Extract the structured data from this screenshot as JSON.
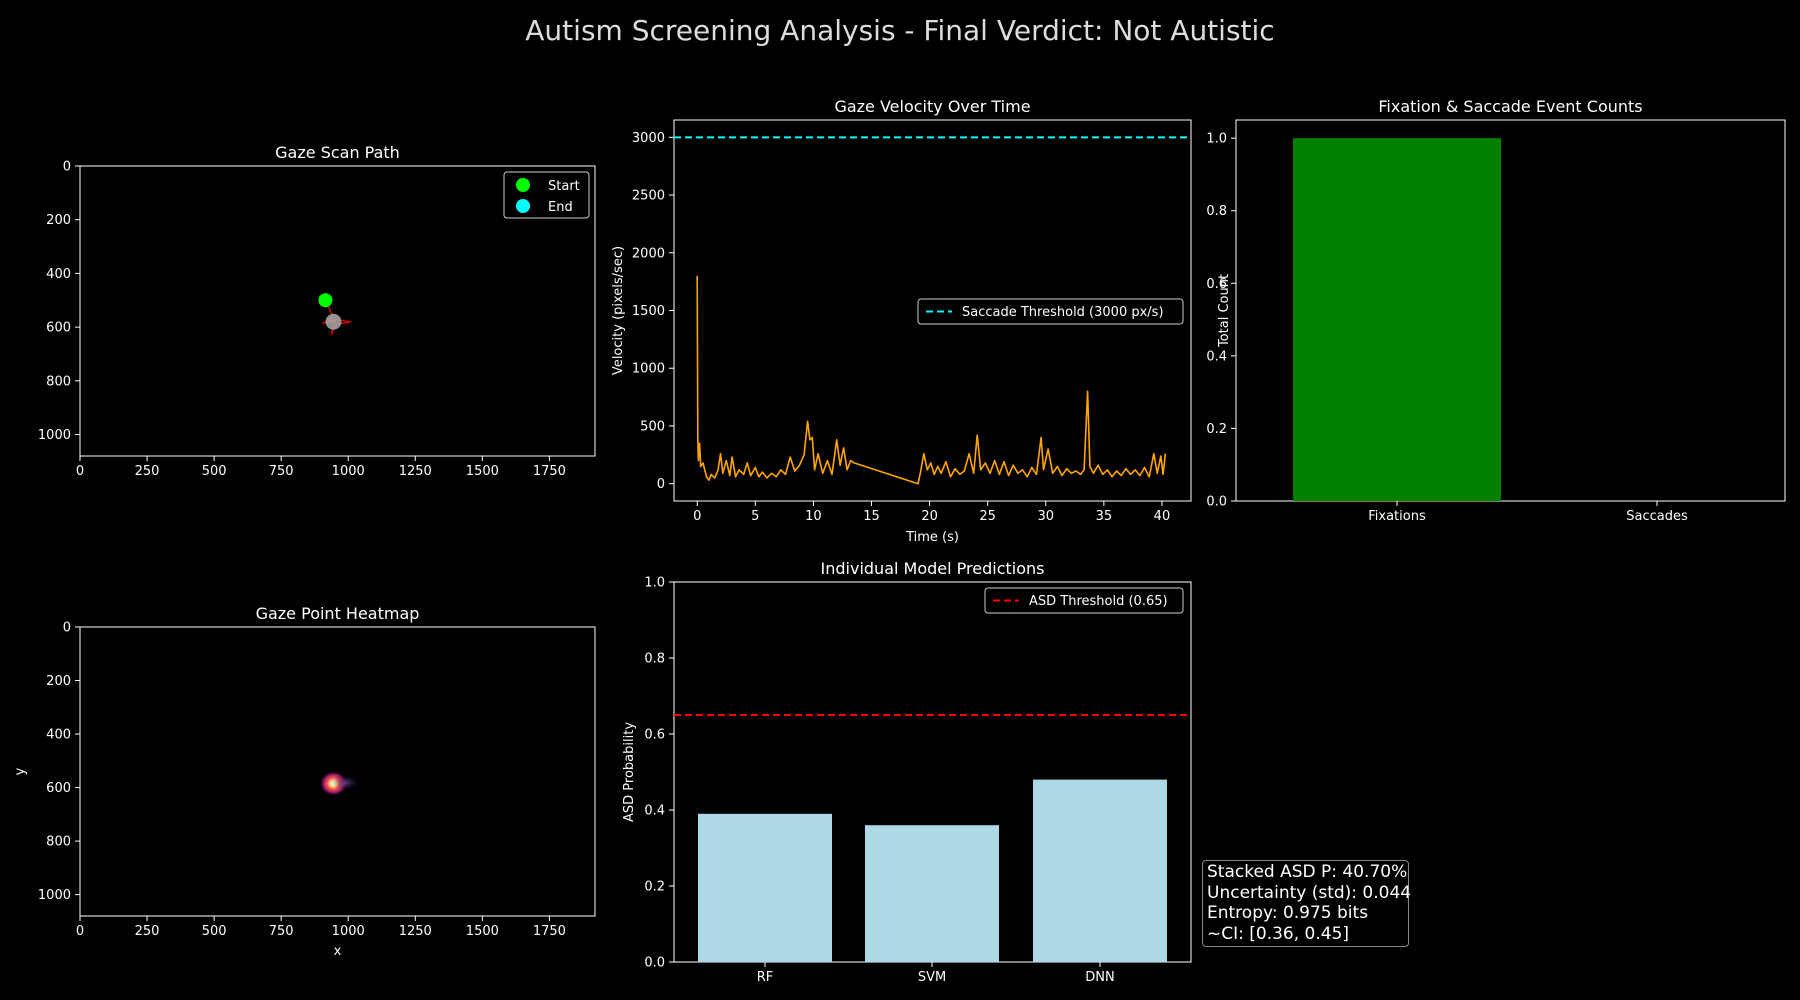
{
  "page": {
    "title": "Autism Screening Analysis - Final Verdict: Not Autistic"
  },
  "colors": {
    "background": "#000000",
    "axis": "#ffffff",
    "start_marker": "#00ff00",
    "end_marker": "#00ffff",
    "scan_path": "#cc0000",
    "velocity_line": "#ffa500",
    "saccade_threshold": "#00ffff",
    "fixation_bar": "#008000",
    "model_bar": "#add8e6",
    "asd_threshold": "#ff0000"
  },
  "chart_data": [
    {
      "id": "scan_path",
      "type": "scatter",
      "title": "Gaze Scan Path",
      "xlabel": "",
      "ylabel": "",
      "xlim": [
        0,
        1920
      ],
      "ylim": [
        1080,
        0
      ],
      "xticks": [
        0,
        250,
        500,
        750,
        1000,
        1250,
        1500,
        1750
      ],
      "yticks": [
        0,
        200,
        400,
        600,
        800,
        1000
      ],
      "legend": [
        {
          "name": "Start",
          "color": "#00ff00"
        },
        {
          "name": "End",
          "color": "#00ffff"
        }
      ],
      "legend_position": "top-right",
      "start": [
        915,
        500
      ],
      "end": [
        945,
        580
      ],
      "path": [
        [
          915,
          500
        ],
        [
          925,
          520
        ],
        [
          935,
          545
        ],
        [
          945,
          562
        ],
        [
          930,
          575
        ],
        [
          905,
          585
        ],
        [
          930,
          580
        ],
        [
          960,
          572
        ],
        [
          990,
          578
        ],
        [
          1010,
          580
        ],
        [
          985,
          585
        ],
        [
          960,
          588
        ],
        [
          950,
          600
        ],
        [
          940,
          615
        ],
        [
          938,
          628
        ],
        [
          945,
          605
        ],
        [
          958,
          588
        ],
        [
          940,
          580
        ],
        [
          925,
          570
        ],
        [
          945,
          580
        ]
      ]
    },
    {
      "id": "heatmap",
      "type": "heatmap",
      "title": "Gaze Point Heatmap",
      "xlabel": "x",
      "ylabel": "y",
      "xlim": [
        0,
        1920
      ],
      "ylim": [
        1080,
        0
      ],
      "xticks": [
        0,
        250,
        500,
        750,
        1000,
        1250,
        1500,
        1750
      ],
      "yticks": [
        0,
        200,
        400,
        600,
        800,
        1000
      ],
      "hotspots": [
        {
          "x": 945,
          "y": 585,
          "intensity": 1.0
        },
        {
          "x": 990,
          "y": 582,
          "intensity": 0.35
        }
      ]
    },
    {
      "id": "velocity",
      "type": "line",
      "title": "Gaze Velocity Over Time",
      "xlabel": "Time (s)",
      "ylabel": "Velocity (pixels/sec)",
      "xlim": [
        -2,
        42.5
      ],
      "ylim": [
        -150,
        3150
      ],
      "xticks": [
        0,
        5,
        10,
        15,
        20,
        25,
        30,
        35,
        40
      ],
      "yticks": [
        0,
        500,
        1000,
        1500,
        2000,
        2500,
        3000
      ],
      "threshold": {
        "value": 3000,
        "label": "Saccade Threshold (3000 px/s)"
      },
      "legend_position": "center-right",
      "series": [
        {
          "x": [
            0,
            0.05,
            0.1,
            0.2,
            0.3,
            0.5,
            0.8,
            1.0,
            1.2,
            1.5,
            1.8,
            2.0,
            2.2,
            2.5,
            2.8,
            3.0,
            3.3,
            3.6,
            4.0,
            4.3,
            4.6,
            5.0,
            5.3,
            5.6,
            6.0,
            6.4,
            6.8,
            7.2,
            7.6,
            8.0,
            8.4,
            8.8,
            9.2,
            9.5,
            9.7,
            9.9,
            10.1,
            10.4,
            10.8,
            11.2,
            11.6,
            12.0,
            12.3,
            12.6,
            12.9,
            13.2,
            13.5,
            19.0,
            19.2,
            19.5,
            19.8,
            20.1,
            20.4,
            20.7,
            21.0,
            21.4,
            21.8,
            22.2,
            22.6,
            23.0,
            23.4,
            23.8,
            24.1,
            24.4,
            24.8,
            25.2,
            25.6,
            26.0,
            26.4,
            26.8,
            27.2,
            27.6,
            28.0,
            28.4,
            28.8,
            29.2,
            29.6,
            29.8,
            30.2,
            30.6,
            31.0,
            31.4,
            31.8,
            32.2,
            32.6,
            33.0,
            33.3,
            33.6,
            33.8,
            34.1,
            34.5,
            34.9,
            35.3,
            35.7,
            36.1,
            36.5,
            36.9,
            37.3,
            37.7,
            38.1,
            38.5,
            38.9,
            39.3,
            39.6,
            39.9,
            40.1,
            40.3
          ],
          "values": [
            1800,
            400,
            200,
            350,
            150,
            180,
            60,
            30,
            80,
            50,
            120,
            260,
            90,
            200,
            70,
            230,
            60,
            120,
            80,
            180,
            70,
            140,
            60,
            100,
            50,
            90,
            60,
            120,
            80,
            230,
            110,
            160,
            250,
            540,
            380,
            400,
            120,
            260,
            90,
            200,
            80,
            380,
            160,
            310,
            120,
            200,
            180,
            0,
            90,
            260,
            120,
            180,
            80,
            150,
            90,
            190,
            60,
            130,
            80,
            110,
            260,
            90,
            420,
            120,
            180,
            90,
            200,
            80,
            190,
            70,
            160,
            90,
            120,
            60,
            140,
            80,
            400,
            120,
            300,
            90,
            150,
            70,
            130,
            90,
            110,
            80,
            120,
            800,
            150,
            90,
            160,
            80,
            120,
            60,
            110,
            70,
            130,
            80,
            120,
            70,
            140,
            60,
            260,
            90,
            240,
            80,
            260
          ]
        }
      ]
    },
    {
      "id": "event_counts",
      "type": "bar",
      "title": "Fixation & Saccade Event Counts",
      "xlabel": "",
      "ylabel": "Total Count",
      "ylim": [
        0,
        1.05
      ],
      "yticks": [
        0.0,
        0.2,
        0.4,
        0.6,
        0.8,
        1.0
      ],
      "categories": [
        "Fixations",
        "Saccades"
      ],
      "values": [
        1,
        0
      ],
      "bar_colors": [
        "#008000",
        "#ff0000"
      ]
    },
    {
      "id": "model_predictions",
      "type": "bar",
      "title": "Individual Model Predictions",
      "xlabel": "",
      "ylabel": "ASD Probability",
      "ylim": [
        0,
        1.0
      ],
      "yticks": [
        0.0,
        0.2,
        0.4,
        0.6,
        0.8,
        1.0
      ],
      "categories": [
        "RF",
        "SVM",
        "DNN"
      ],
      "values": [
        0.39,
        0.36,
        0.48
      ],
      "threshold": {
        "value": 0.65,
        "label": "ASD Threshold (0.65)"
      },
      "legend_position": "top-right"
    }
  ],
  "stats": {
    "lines": [
      "Stacked ASD P: 40.70%",
      "Uncertainty (std): 0.044",
      "Entropy: 0.975 bits",
      "~CI: [0.36, 0.45]"
    ]
  }
}
